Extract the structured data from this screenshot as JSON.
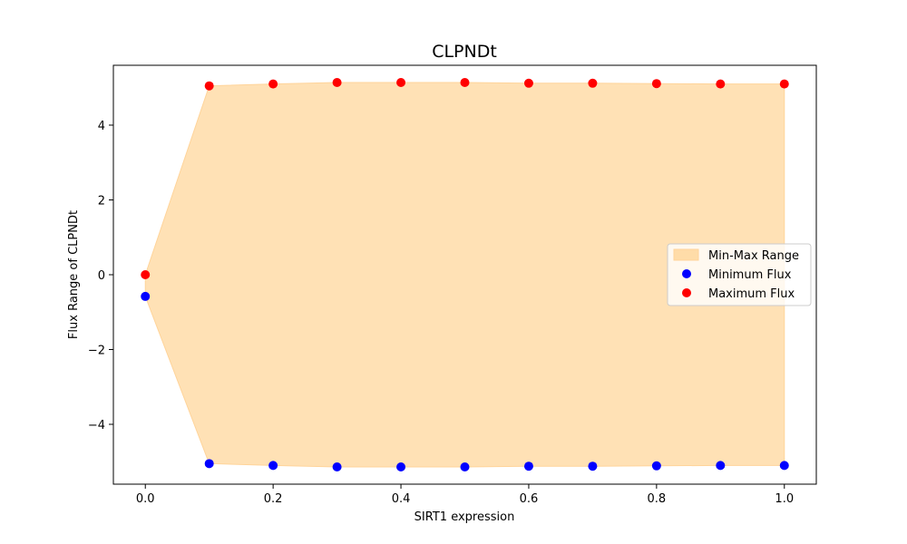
{
  "chart_data": {
    "type": "scatter",
    "title": "CLPNDt",
    "xlabel": "SIRT1 expression",
    "ylabel": "Flux Range of CLPNDt",
    "xlim": [
      -0.05,
      1.05
    ],
    "ylim": [
      -5.6,
      5.6
    ],
    "x_ticks": [
      0.0,
      0.2,
      0.4,
      0.6,
      0.8,
      1.0
    ],
    "x_tick_labels": [
      "0.0",
      "0.2",
      "0.4",
      "0.6",
      "0.8",
      "1.0"
    ],
    "y_ticks": [
      -4,
      -2,
      0,
      2,
      4
    ],
    "y_tick_labels": [
      "−4",
      "−2",
      "0",
      "2",
      "4"
    ],
    "grid": false,
    "legend_position": "center-right",
    "x": [
      0.0,
      0.1,
      0.2,
      0.3,
      0.4,
      0.5,
      0.6,
      0.7,
      0.8,
      0.9,
      1.0
    ],
    "series": [
      {
        "name": "Min-Max Range",
        "kind": "fill_between",
        "color": "#FFDCA8"
      },
      {
        "name": "Minimum Flux",
        "kind": "scatter",
        "color": "#0000FF",
        "values": [
          -0.58,
          -5.05,
          -5.1,
          -5.14,
          -5.14,
          -5.14,
          -5.12,
          -5.12,
          -5.11,
          -5.1,
          -5.1
        ]
      },
      {
        "name": "Maximum Flux",
        "kind": "scatter",
        "color": "#FF0000",
        "values": [
          0.0,
          5.05,
          5.1,
          5.14,
          5.14,
          5.14,
          5.12,
          5.12,
          5.11,
          5.1,
          5.1
        ]
      }
    ]
  }
}
